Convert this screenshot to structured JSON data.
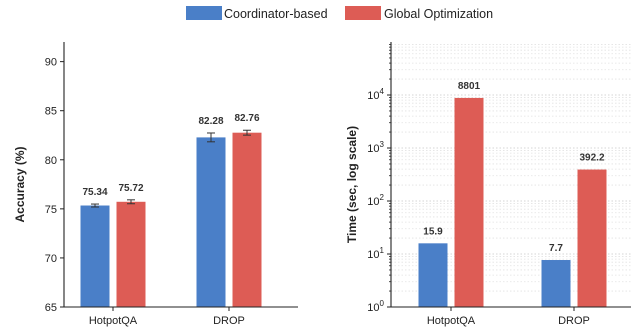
{
  "legend": {
    "items": [
      {
        "label": "Coordinator-based",
        "color": "#4a7fc8"
      },
      {
        "label": "Global Optimization",
        "color": "#dd5c55"
      }
    ],
    "placement": "top-center"
  },
  "chart_data": [
    {
      "type": "bar",
      "title": "",
      "xlabel": "",
      "ylabel": "Accuracy (%)",
      "categories": [
        "HotpotQA",
        "DROP"
      ],
      "ylim": [
        65,
        92
      ],
      "yticks": [
        65,
        70,
        75,
        80,
        85,
        90
      ],
      "ytick_labels": [
        "65",
        "70",
        "75",
        "80",
        "85",
        "90"
      ],
      "grid": false,
      "series": [
        {
          "name": "Coordinator-based",
          "color": "#4a7fc8",
          "values": [
            75.34,
            82.28
          ],
          "labels": [
            "75.34",
            "82.28"
          ],
          "error": [
            0.15,
            0.45
          ]
        },
        {
          "name": "Global Optimization",
          "color": "#dd5c55",
          "values": [
            75.72,
            82.76
          ],
          "labels": [
            "75.72",
            "82.76"
          ],
          "error": [
            0.2,
            0.25
          ]
        }
      ]
    },
    {
      "type": "bar",
      "title": "",
      "xlabel": "",
      "ylabel": "Time (sec, log scale)",
      "yscale": "log",
      "categories": [
        "HotpotQA",
        "DROP"
      ],
      "ylim": [
        1,
        100000
      ],
      "yticks": [
        1,
        10,
        100,
        1000,
        10000
      ],
      "ytick_labels": [
        [
          "10",
          "0"
        ],
        [
          "10",
          "1"
        ],
        [
          "10",
          "2"
        ],
        [
          "10",
          "3"
        ],
        [
          "10",
          "4"
        ]
      ],
      "grid": true,
      "series": [
        {
          "name": "Coordinator-based",
          "color": "#4a7fc8",
          "values": [
            15.9,
            7.7
          ],
          "labels": [
            "15.9",
            "7.7"
          ]
        },
        {
          "name": "Global Optimization",
          "color": "#dd5c55",
          "values": [
            8801,
            392.2
          ],
          "labels": [
            "8801",
            "392.2"
          ]
        }
      ]
    }
  ]
}
